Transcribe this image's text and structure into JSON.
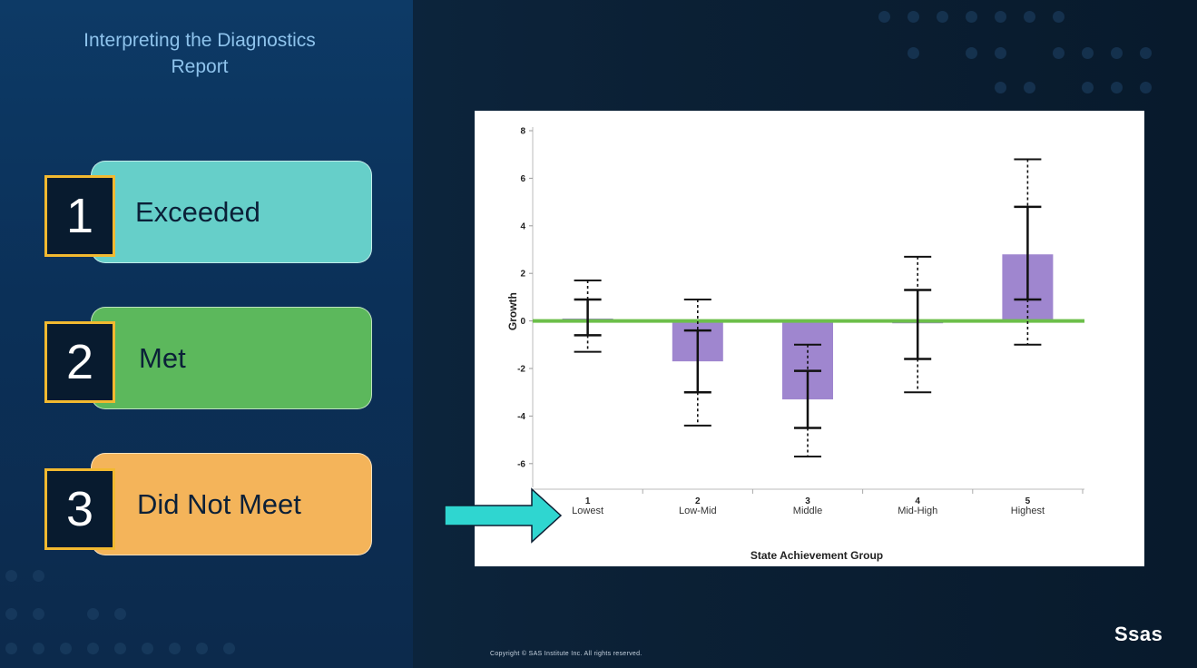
{
  "slide": {
    "title": "Interpreting the Diagnostics Report",
    "copyright": "Copyright © SAS Institute Inc. All rights reserved.",
    "logo": "Ssas"
  },
  "legend_cards": [
    {
      "number": "1",
      "label": "Exceeded",
      "color": "#66cfc9"
    },
    {
      "number": "2",
      "label": "Met",
      "color": "#5cb85c"
    },
    {
      "number": "3",
      "label": "Did Not Meet",
      "color": "#f4b45a"
    }
  ],
  "arrow": {
    "color": "#2fd6d0",
    "points_to": "1 Lowest"
  },
  "colors": {
    "bar": "#9f86cf",
    "zero_line": "#6cbf4a",
    "whisker": "#111111"
  },
  "chart_data": {
    "type": "bar",
    "xlabel": "State Achievement Group",
    "ylabel": "Growth",
    "ylim": [
      -7,
      8
    ],
    "yticks": [
      8,
      6,
      4,
      2,
      0,
      -2,
      -4,
      -6
    ],
    "ytick_labels": [
      "8",
      "6",
      "4",
      "2",
      "0",
      "-2",
      "-4",
      "-6"
    ],
    "categories": [
      {
        "num": "1",
        "name": "Lowest"
      },
      {
        "num": "2",
        "name": "Low-Mid"
      },
      {
        "num": "3",
        "name": "Middle"
      },
      {
        "num": "4",
        "name": "Mid-High"
      },
      {
        "num": "5",
        "name": "Highest"
      }
    ],
    "values": [
      0.1,
      -1.7,
      -3.3,
      -0.1,
      2.8
    ],
    "inner_interval": [
      [
        -0.6,
        0.9
      ],
      [
        -3.0,
        -0.4
      ],
      [
        -4.5,
        -2.1
      ],
      [
        -1.6,
        1.3
      ],
      [
        0.9,
        4.8
      ]
    ],
    "outer_interval": [
      [
        -1.3,
        1.7
      ],
      [
        -4.4,
        0.9
      ],
      [
        -5.7,
        -1.0
      ],
      [
        -3.0,
        2.7
      ],
      [
        -1.0,
        6.8
      ]
    ],
    "reference_line": 0
  }
}
